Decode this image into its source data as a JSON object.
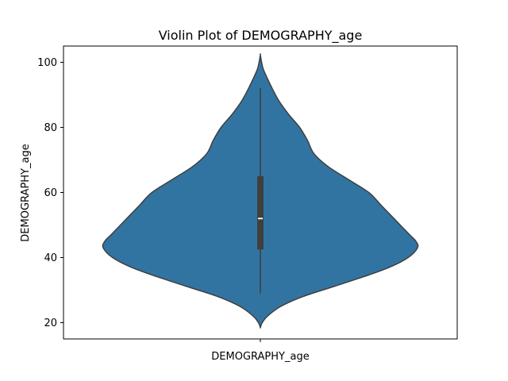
{
  "chart_data": {
    "type": "violin",
    "title": "Violin Plot of DEMOGRAPHY_age",
    "xlabel": "DEMOGRAPHY_age",
    "ylabel": "DEMOGRAPHY_age",
    "categories": [
      "DEMOGRAPHY_age"
    ],
    "ylim": [
      15,
      105
    ],
    "yticks": [
      20,
      40,
      60,
      80,
      100
    ],
    "violin": {
      "color": "#3274a1",
      "edge_color": "#3f3f3f",
      "min_extent": 18.5,
      "max_extent": 102.3,
      "density_profile": [
        [
          18.5,
          0.0
        ],
        [
          20,
          0.012
        ],
        [
          22,
          0.045
        ],
        [
          25,
          0.13
        ],
        [
          28,
          0.27
        ],
        [
          31,
          0.46
        ],
        [
          34,
          0.65
        ],
        [
          37,
          0.82
        ],
        [
          40,
          0.94
        ],
        [
          43,
          1.0
        ],
        [
          45,
          0.99
        ],
        [
          47,
          0.95
        ],
        [
          50,
          0.89
        ],
        [
          53,
          0.83
        ],
        [
          56,
          0.77
        ],
        [
          60,
          0.69
        ],
        [
          64,
          0.56
        ],
        [
          68,
          0.43
        ],
        [
          72,
          0.34
        ],
        [
          76,
          0.3
        ],
        [
          80,
          0.25
        ],
        [
          84,
          0.18
        ],
        [
          88,
          0.12
        ],
        [
          92,
          0.075
        ],
        [
          95,
          0.045
        ],
        [
          98,
          0.018
        ],
        [
          100,
          0.008
        ],
        [
          102.3,
          0.0
        ]
      ]
    },
    "box": {
      "whisker_low": 29,
      "q1": 42.5,
      "median": 52,
      "q3": 65,
      "whisker_high": 92
    }
  }
}
